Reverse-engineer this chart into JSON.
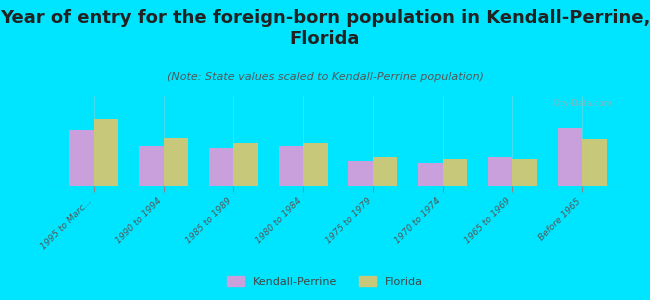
{
  "title": "Year of entry for the foreign-born population in Kendall-Perrine,\nFlorida",
  "subtitle": "(Note: State values scaled to Kendall-Perrine population)",
  "categories": [
    "1995 to Marc...",
    "1990 to 1994",
    "1985 to 1989",
    "1980 to 1984",
    "1975 to 1979",
    "1970 to 1974",
    "1965 to 1969",
    "Before 1965"
  ],
  "kendall_values": [
    62,
    45,
    42,
    45,
    28,
    26,
    32,
    65
  ],
  "florida_values": [
    75,
    53,
    48,
    48,
    32,
    30,
    30,
    52
  ],
  "kendall_color": "#c9a0dc",
  "florida_color": "#c8c87a",
  "bg_color": "#00e5ff",
  "chart_bg_top": "#e8f0d8",
  "chart_bg_bottom": "#f5f5e8",
  "title_fontsize": 13,
  "subtitle_fontsize": 8,
  "watermark": "City-Data.com",
  "ylabel": "0",
  "bar_width": 0.35
}
